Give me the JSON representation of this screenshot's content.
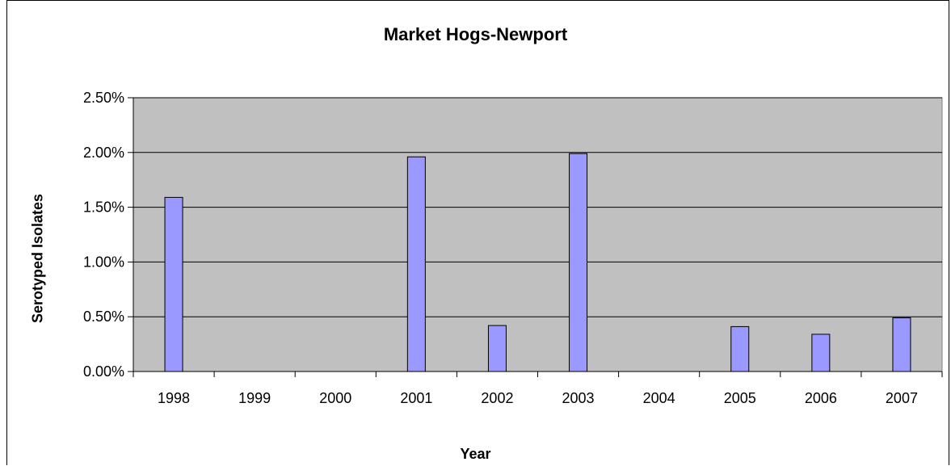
{
  "chart_data": {
    "type": "bar",
    "title": "Market Hogs-Newport",
    "xlabel": "Year",
    "ylabel": "Serotyped Isolates",
    "categories": [
      "1998",
      "1999",
      "2000",
      "2001",
      "2002",
      "2003",
      "2004",
      "2005",
      "2006",
      "2007"
    ],
    "values": [
      0.0159,
      0.0,
      0.0,
      0.0196,
      0.0042,
      0.0199,
      0.0,
      0.0041,
      0.0034,
      0.0049
    ],
    "y_ticks": [
      "0.00%",
      "0.50%",
      "1.00%",
      "1.50%",
      "2.00%",
      "2.50%"
    ],
    "ylim": [
      0,
      0.025
    ],
    "grid": true,
    "colors": {
      "plot_background": "#c0c0c0",
      "bar_fill": "#9999ff",
      "bar_stroke": "#000000",
      "grid": "#000000"
    }
  }
}
